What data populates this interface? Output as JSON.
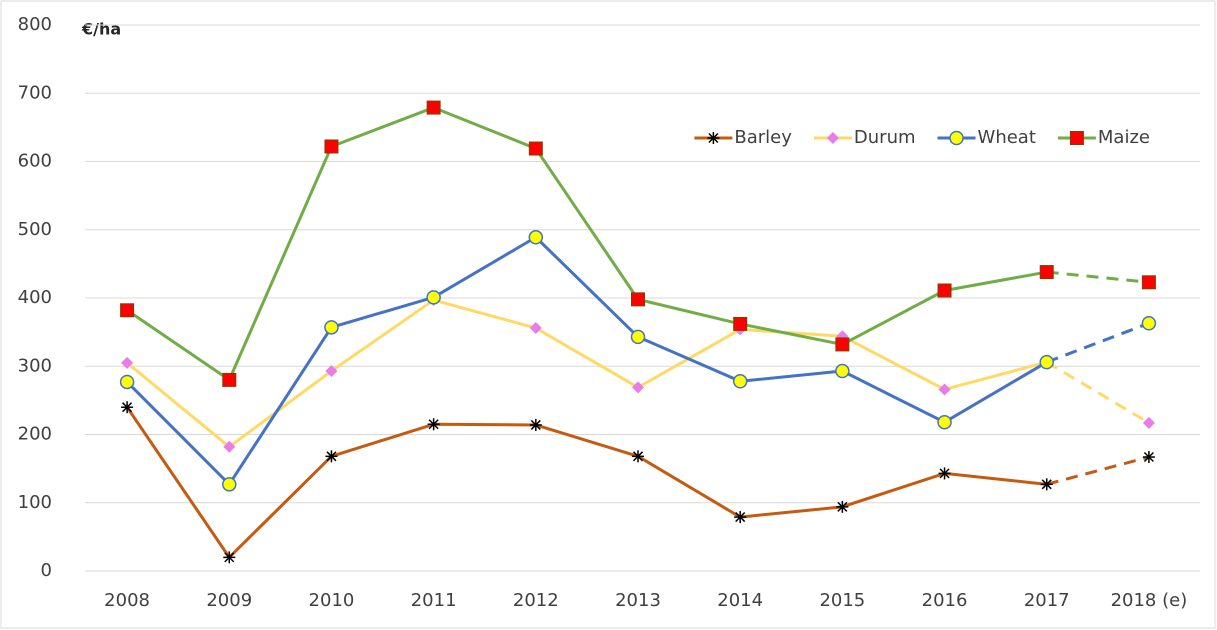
{
  "chart_data": {
    "type": "line",
    "y_label": "€/ha",
    "categories": [
      "2008",
      "2009",
      "2010",
      "2011",
      "2012",
      "2013",
      "2014",
      "2015",
      "2016",
      "2017",
      "2018 (e)"
    ],
    "series": [
      {
        "name": "Barley",
        "color": "#c55a11",
        "marker": "asterisk",
        "marker_color": "#000000",
        "values": [
          240,
          20,
          168,
          215,
          214,
          168,
          79,
          94,
          143,
          127,
          167
        ]
      },
      {
        "name": "Durum",
        "color": "#ffd966",
        "marker": "diamond",
        "marker_color": "#e87ce8",
        "values": [
          305,
          182,
          293,
          397,
          356,
          269,
          354,
          344,
          266,
          306,
          217
        ]
      },
      {
        "name": "Wheat",
        "color": "#4472c4",
        "marker": "circle",
        "marker_color": "#ffff00",
        "values": [
          277,
          127,
          357,
          401,
          489,
          343,
          278,
          293,
          218,
          306,
          363
        ]
      },
      {
        "name": "Maize",
        "color": "#70ad47",
        "marker": "square",
        "marker_color": "#ff0000",
        "values": [
          382,
          280,
          622,
          679,
          619,
          398,
          362,
          332,
          411,
          438,
          423
        ]
      }
    ],
    "dashed_last_segment": true,
    "ylim": [
      0,
      800
    ],
    "yticks": [
      0,
      100,
      200,
      300,
      400,
      500,
      600,
      700,
      800
    ],
    "grid": true,
    "legend_position": "upper right"
  }
}
